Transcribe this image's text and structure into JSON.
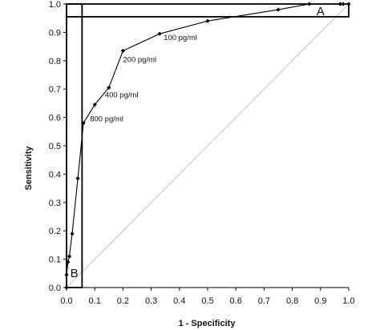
{
  "chart_data": {
    "type": "line",
    "title": "",
    "xlabel": "1 - Specificity",
    "ylabel": "Sensitivity",
    "xlim": [
      0,
      1
    ],
    "ylim": [
      0,
      1
    ],
    "x_ticks": [
      "0.0",
      "0.1",
      "0.2",
      "0.3",
      "0.4",
      "0.5",
      "0.6",
      "0.7",
      "0.8",
      "0.9",
      "1.0"
    ],
    "y_ticks": [
      "0.0",
      "0.1",
      "0.2",
      "0.3",
      "0.4",
      "0.5",
      "0.6",
      "0.7",
      "0.8",
      "0.9",
      "1.0"
    ],
    "grid": false,
    "series": [
      {
        "points": [
          [
            0.0,
            0.0
          ],
          [
            0.0,
            0.045
          ],
          [
            0.005,
            0.09
          ],
          [
            0.01,
            0.11
          ],
          [
            0.02,
            0.19
          ],
          [
            0.04,
            0.385
          ],
          [
            0.06,
            0.58
          ],
          [
            0.1,
            0.645
          ],
          [
            0.15,
            0.705
          ],
          [
            0.2,
            0.835
          ],
          [
            0.33,
            0.895
          ],
          [
            0.5,
            0.94
          ],
          [
            0.75,
            0.98
          ],
          [
            0.86,
            1.0
          ],
          [
            0.97,
            1.0
          ],
          [
            0.98,
            1.0
          ],
          [
            1.0,
            1.0
          ]
        ]
      }
    ],
    "reference_line": [
      [
        0,
        0
      ],
      [
        1,
        1
      ]
    ],
    "annotations": [
      {
        "text": "100 pg/ml",
        "x": 0.33,
        "y": 0.895
      },
      {
        "text": "200 pg/ml",
        "x": 0.2,
        "y": 0.835
      },
      {
        "text": "400 pg/ml",
        "x": 0.15,
        "y": 0.705
      },
      {
        "text": "800 pg/ml",
        "x": 0.1,
        "y": 0.645
      }
    ],
    "regions": [
      {
        "label": "A",
        "x": [
          0.0,
          1.0
        ],
        "y": [
          0.955,
          1.0
        ]
      },
      {
        "label": "B",
        "x": [
          0.0,
          0.055
        ],
        "y": [
          0.0,
          1.0
        ]
      }
    ]
  }
}
